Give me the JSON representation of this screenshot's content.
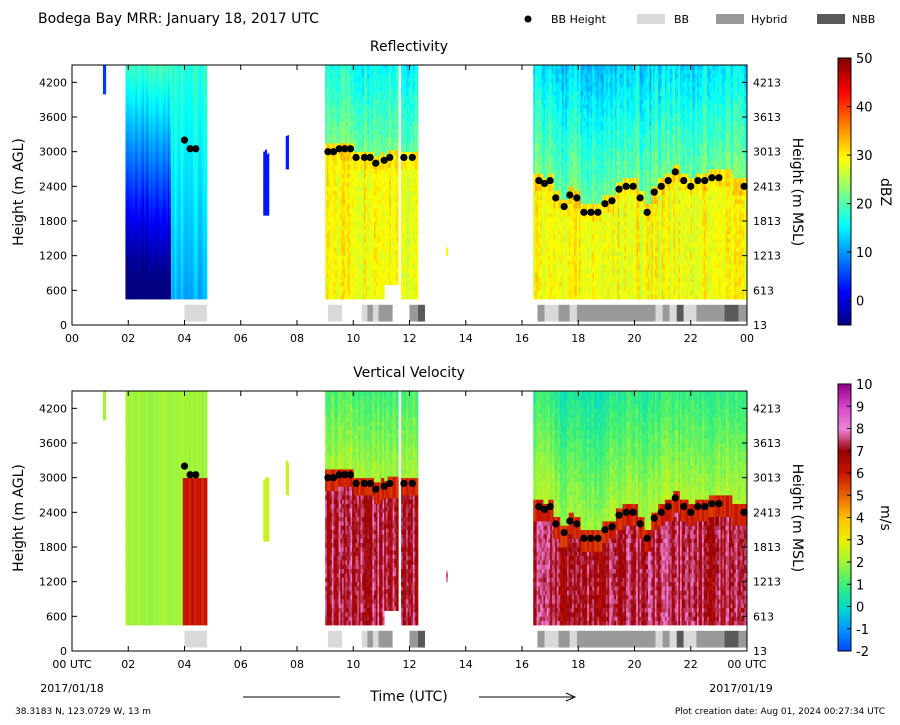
{
  "header": {
    "title": "Bodega Bay MRR:  January 18, 2017 UTC",
    "legend": [
      {
        "label": "BB Height",
        "kind": "marker",
        "color": "#000000"
      },
      {
        "label": "BB",
        "kind": "swatch",
        "color": "#d9d9d9"
      },
      {
        "label": "Hybrid",
        "kind": "swatch",
        "color": "#999999"
      },
      {
        "label": "NBB",
        "kind": "swatch",
        "color": "#595959"
      }
    ]
  },
  "footer": {
    "location": "38.3183 N, 123.0729 W, 13 m",
    "creation_date": "Plot creation date: Aug 01, 2024 00:27:34 UTC",
    "start_date": "2017/01/18",
    "end_date": "2017/01/19",
    "xlabel": "Time (UTC)"
  },
  "chart_data": [
    {
      "type": "heatmap",
      "title": "Reflectivity",
      "ylabel": "Height (m AGL)",
      "ylabel_right": "Height (m MSL)",
      "xlim": [
        0,
        24
      ],
      "ylim": [
        0,
        4500
      ],
      "x_ticks": [
        "00",
        "02",
        "04",
        "06",
        "08",
        "10",
        "12",
        "14",
        "16",
        "18",
        "20",
        "22",
        "00"
      ],
      "y_ticks_left": [
        "0",
        "600",
        "1200",
        "1800",
        "2400",
        "3000",
        "3600",
        "4200"
      ],
      "y_ticks_right": [
        "13",
        "613",
        "1213",
        "1813",
        "2413",
        "3013",
        "3613",
        "4213"
      ],
      "colorbar": {
        "label": "dBZ",
        "range": [
          -5,
          50
        ],
        "ticks": [
          "0",
          "10",
          "20",
          "30",
          "40",
          "50"
        ],
        "colormap": "jet"
      }
    },
    {
      "type": "heatmap",
      "title": "Vertical Velocity",
      "ylabel": "Height (m AGL)",
      "ylabel_right": "Height (m MSL)",
      "xlim": [
        0,
        24
      ],
      "ylim": [
        0,
        4500
      ],
      "x_ticks": [
        "00 UTC",
        "02",
        "04",
        "06",
        "08",
        "10",
        "12",
        "14",
        "16",
        "18",
        "20",
        "22",
        "00 UTC"
      ],
      "y_ticks_left": [
        "0",
        "600",
        "1200",
        "1800",
        "2400",
        "3000",
        "3600",
        "4200"
      ],
      "y_ticks_right": [
        "13",
        "613",
        "1213",
        "1813",
        "2413",
        "3013",
        "3613",
        "4213"
      ],
      "colorbar": {
        "label": "m/s",
        "range": [
          -2,
          10
        ],
        "ticks": [
          "-2",
          "-1",
          "0",
          "1",
          "2",
          "3",
          "4",
          "5",
          "6",
          "7",
          "8",
          "9",
          "10"
        ],
        "colormap": "velocity"
      }
    }
  ],
  "bb_height": {
    "x": [
      4.0,
      4.2,
      4.4,
      9.1,
      9.3,
      9.5,
      9.7,
      9.9,
      10.1,
      10.4,
      10.6,
      10.8,
      11.1,
      11.3,
      11.8,
      12.1,
      16.6,
      16.8,
      17.0,
      17.2,
      17.5,
      17.7,
      17.95,
      18.2,
      18.45,
      18.7,
      18.95,
      19.2,
      19.45,
      19.7,
      19.95,
      20.2,
      20.45,
      20.7,
      20.95,
      21.2,
      21.45,
      21.75,
      22.0,
      22.25,
      22.5,
      22.75,
      23.0,
      23.9
    ],
    "y": [
      3200,
      3050,
      3050,
      3000,
      3000,
      3050,
      3050,
      3050,
      2900,
      2900,
      2900,
      2800,
      2850,
      2900,
      2900,
      2900,
      2500,
      2450,
      2500,
      2200,
      2050,
      2250,
      2200,
      1950,
      1950,
      1950,
      2100,
      2150,
      2350,
      2400,
      2400,
      2200,
      1950,
      2300,
      2400,
      2500,
      2650,
      2500,
      2400,
      2500,
      2500,
      2550,
      2550,
      2400
    ]
  },
  "bb_classification": [
    {
      "start": 4.0,
      "end": 4.8,
      "class": "BB"
    },
    {
      "start": 9.1,
      "end": 9.6,
      "class": "BB"
    },
    {
      "start": 10.3,
      "end": 10.5,
      "class": "BB"
    },
    {
      "start": 10.5,
      "end": 10.7,
      "class": "Hybrid"
    },
    {
      "start": 10.7,
      "end": 10.9,
      "class": "BB"
    },
    {
      "start": 10.9,
      "end": 11.4,
      "class": "Hybrid"
    },
    {
      "start": 12.0,
      "end": 12.3,
      "class": "Hybrid"
    },
    {
      "start": 12.3,
      "end": 12.55,
      "class": "NBB"
    },
    {
      "start": 16.55,
      "end": 16.8,
      "class": "Hybrid"
    },
    {
      "start": 16.8,
      "end": 17.3,
      "class": "BB"
    },
    {
      "start": 17.3,
      "end": 17.7,
      "class": "Hybrid"
    },
    {
      "start": 17.7,
      "end": 17.95,
      "class": "BB"
    },
    {
      "start": 17.95,
      "end": 20.75,
      "class": "Hybrid"
    },
    {
      "start": 20.75,
      "end": 21.0,
      "class": "BB"
    },
    {
      "start": 21.0,
      "end": 21.25,
      "class": "Hybrid"
    },
    {
      "start": 21.25,
      "end": 21.5,
      "class": "BB"
    },
    {
      "start": 21.5,
      "end": 21.75,
      "class": "NBB"
    },
    {
      "start": 21.75,
      "end": 22.2,
      "class": "BB"
    },
    {
      "start": 22.2,
      "end": 23.2,
      "class": "Hybrid"
    },
    {
      "start": 23.2,
      "end": 23.7,
      "class": "NBB"
    },
    {
      "start": 23.7,
      "end": 24.0,
      "class": "Hybrid"
    }
  ],
  "echo_blocks": [
    {
      "start": 1.1,
      "end": 1.2,
      "top": 4500,
      "bottom": 4000
    },
    {
      "start": 1.9,
      "end": 4.8,
      "top": 4500,
      "bottom": 450
    },
    {
      "start": 6.8,
      "end": 7.0,
      "top": 3000,
      "bottom": 1900
    },
    {
      "start": 7.6,
      "end": 7.7,
      "top": 3300,
      "bottom": 2700
    },
    {
      "start": 9.0,
      "end": 11.1,
      "top": 4500,
      "bottom": 450
    },
    {
      "start": 11.1,
      "end": 11.6,
      "top": 4500,
      "bottom": 700
    },
    {
      "start": 11.7,
      "end": 12.3,
      "top": 4500,
      "bottom": 450
    },
    {
      "start": 13.3,
      "end": 13.35,
      "top": 1350,
      "bottom": 1200
    },
    {
      "start": 16.4,
      "end": 24.0,
      "top": 4500,
      "bottom": 450
    }
  ]
}
